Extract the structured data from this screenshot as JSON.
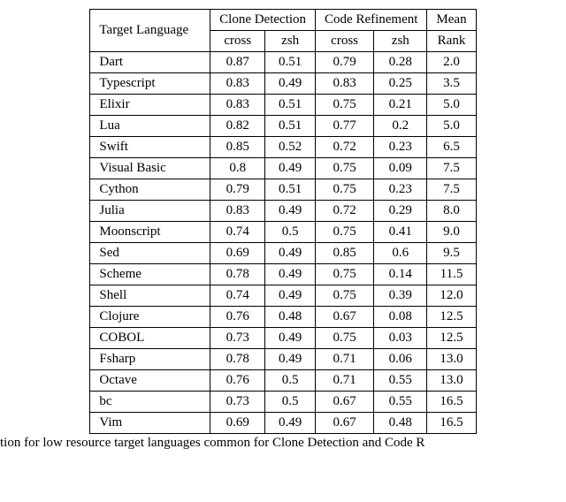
{
  "headers": {
    "target": "Target Language",
    "group1": "Clone Detection",
    "group2": "Code Refinement",
    "mean": "Mean",
    "rank": "Rank",
    "sub_cross": "cross",
    "sub_zsh": "zsh"
  },
  "rows": [
    {
      "lang": "Dart",
      "cd_cross": "0.87",
      "cd_zsh": "0.51",
      "cr_cross": "0.79",
      "cr_zsh": "0.28",
      "rank": "2.0"
    },
    {
      "lang": "Typescript",
      "cd_cross": "0.83",
      "cd_zsh": "0.49",
      "cr_cross": "0.83",
      "cr_zsh": "0.25",
      "rank": "3.5"
    },
    {
      "lang": "Elixir",
      "cd_cross": "0.83",
      "cd_zsh": "0.51",
      "cr_cross": "0.75",
      "cr_zsh": "0.21",
      "rank": "5.0"
    },
    {
      "lang": "Lua",
      "cd_cross": "0.82",
      "cd_zsh": "0.51",
      "cr_cross": "0.77",
      "cr_zsh": "0.2",
      "rank": "5.0"
    },
    {
      "lang": "Swift",
      "cd_cross": "0.85",
      "cd_zsh": "0.52",
      "cr_cross": "0.72",
      "cr_zsh": "0.23",
      "rank": "6.5"
    },
    {
      "lang": "Visual Basic",
      "cd_cross": "0.8",
      "cd_zsh": "0.49",
      "cr_cross": "0.75",
      "cr_zsh": "0.09",
      "rank": "7.5"
    },
    {
      "lang": "Cython",
      "cd_cross": "0.79",
      "cd_zsh": "0.51",
      "cr_cross": "0.75",
      "cr_zsh": "0.23",
      "rank": "7.5"
    },
    {
      "lang": "Julia",
      "cd_cross": "0.83",
      "cd_zsh": "0.49",
      "cr_cross": "0.72",
      "cr_zsh": "0.29",
      "rank": "8.0"
    },
    {
      "lang": "Moonscript",
      "cd_cross": "0.74",
      "cd_zsh": "0.5",
      "cr_cross": "0.75",
      "cr_zsh": "0.41",
      "rank": "9.0"
    },
    {
      "lang": "Sed",
      "cd_cross": "0.69",
      "cd_zsh": "0.49",
      "cr_cross": "0.85",
      "cr_zsh": "0.6",
      "rank": "9.5"
    },
    {
      "lang": "Scheme",
      "cd_cross": "0.78",
      "cd_zsh": "0.49",
      "cr_cross": "0.75",
      "cr_zsh": "0.14",
      "rank": "11.5"
    },
    {
      "lang": "Shell",
      "cd_cross": "0.74",
      "cd_zsh": "0.49",
      "cr_cross": "0.75",
      "cr_zsh": "0.39",
      "rank": "12.0"
    },
    {
      "lang": "Clojure",
      "cd_cross": "0.76",
      "cd_zsh": "0.48",
      "cr_cross": "0.67",
      "cr_zsh": "0.08",
      "rank": "12.5"
    },
    {
      "lang": "COBOL",
      "cd_cross": "0.73",
      "cd_zsh": "0.49",
      "cr_cross": "0.75",
      "cr_zsh": "0.03",
      "rank": "12.5"
    },
    {
      "lang": "Fsharp",
      "cd_cross": "0.78",
      "cd_zsh": "0.49",
      "cr_cross": "0.71",
      "cr_zsh": "0.06",
      "rank": "13.0"
    },
    {
      "lang": "Octave",
      "cd_cross": "0.76",
      "cd_zsh": "0.5",
      "cr_cross": "0.71",
      "cr_zsh": "0.55",
      "rank": "13.0"
    },
    {
      "lang": "bc",
      "cd_cross": "0.73",
      "cd_zsh": "0.5",
      "cr_cross": "0.67",
      "cr_zsh": "0.55",
      "rank": "16.5"
    },
    {
      "lang": "Vim",
      "cd_cross": "0.69",
      "cd_zsh": "0.49",
      "cr_cross": "0.67",
      "cr_zsh": "0.48",
      "rank": "16.5"
    }
  ],
  "caption": "tion for low resource target languages common for Clone Detection and Code R"
}
